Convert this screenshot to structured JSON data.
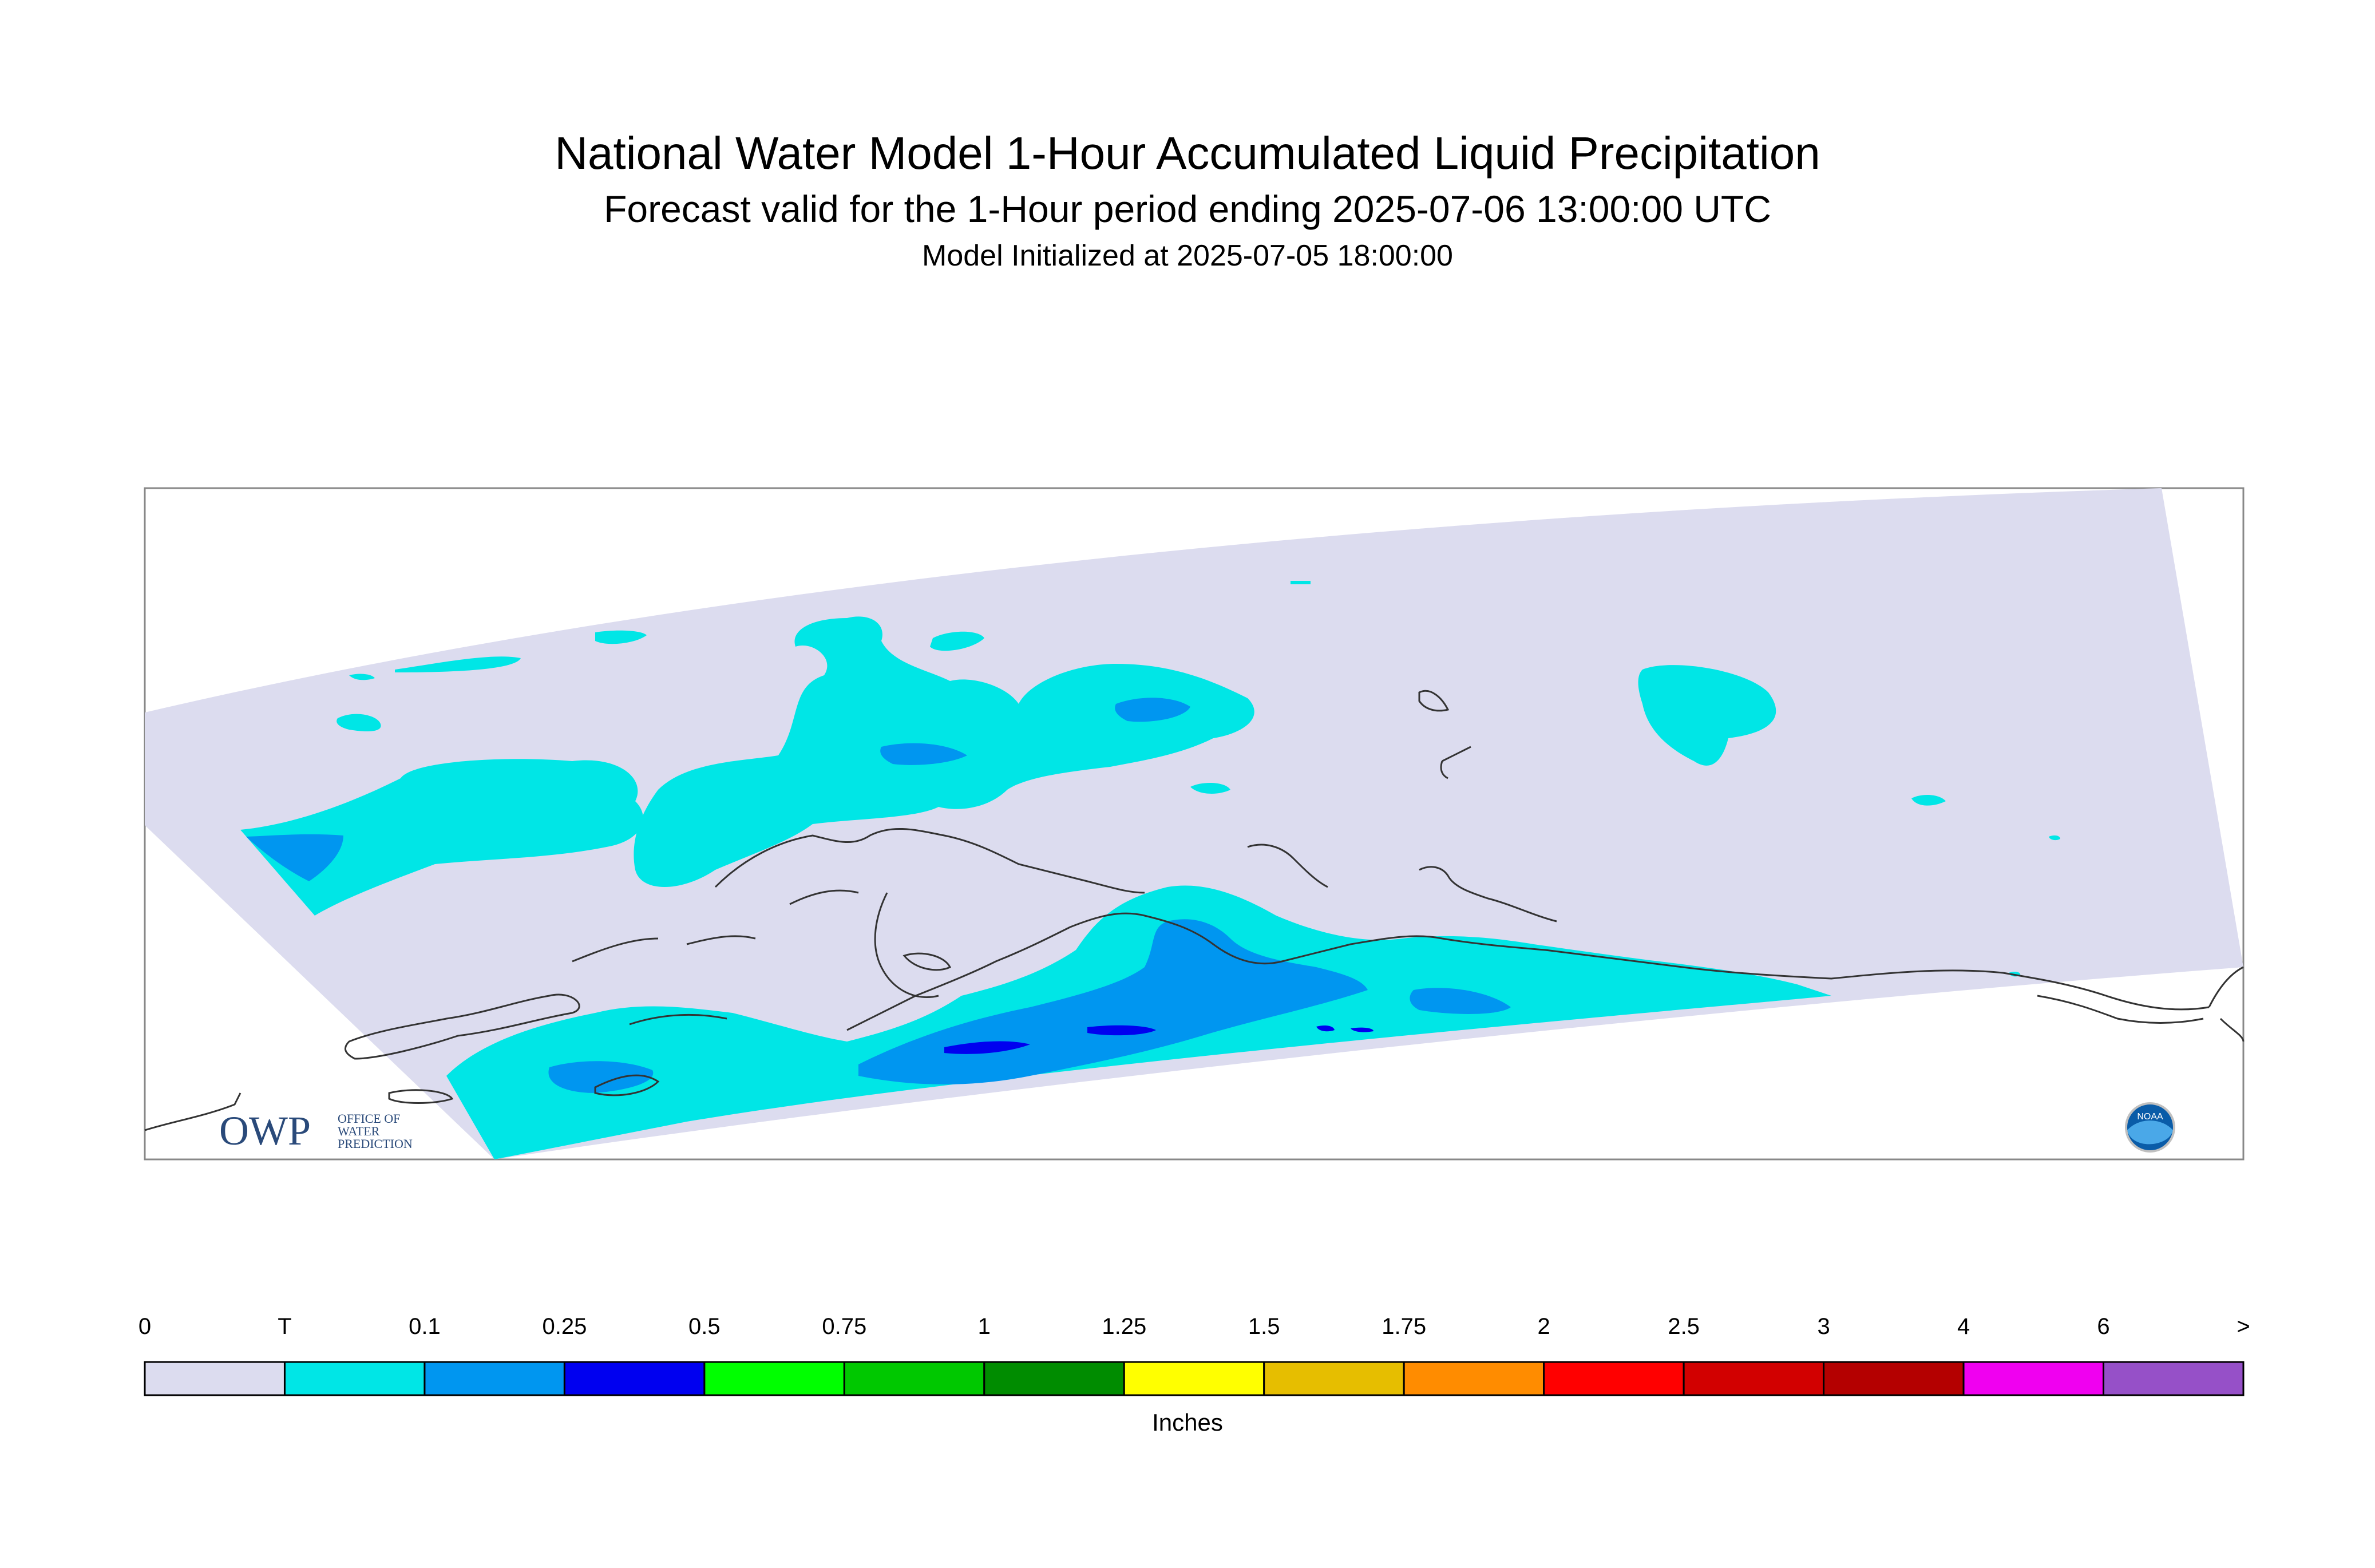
{
  "header": {
    "title": "National Water Model 1-Hour Accumulated Liquid Precipitation",
    "subtitle": "Forecast valid for the 1-Hour period ending 2025-07-06 13:00:00 UTC",
    "init_line": "Model Initialized at 2025-07-05 18:00:00"
  },
  "logos": {
    "owp_mark": "OWP",
    "owp_text_lines": [
      "OFFICE OF",
      "WATER",
      "PREDICTION"
    ],
    "noaa_mark": "NOAA"
  },
  "legend": {
    "units": "Inches",
    "labels": [
      "0",
      "T",
      "0.1",
      "0.25",
      "0.5",
      "0.75",
      "1",
      "1.25",
      "1.5",
      "1.75",
      "2",
      "2.5",
      "3",
      "4",
      "6",
      ">"
    ],
    "colors": [
      "#dcdcef",
      "#00e6e6",
      "#0096f0",
      "#0000f0",
      "#00ff00",
      "#00c800",
      "#008c00",
      "#ffff00",
      "#e6be00",
      "#ff8c00",
      "#ff0000",
      "#d20000",
      "#b40000",
      "#f000f0",
      "#9650c8"
    ]
  },
  "colors": {
    "no_precip": "#dcdcef",
    "trace": "#00e6e6",
    "tenth": "#0096f0",
    "quarter": "#0000f0",
    "coast": "#333333",
    "frame": "#888888"
  }
}
